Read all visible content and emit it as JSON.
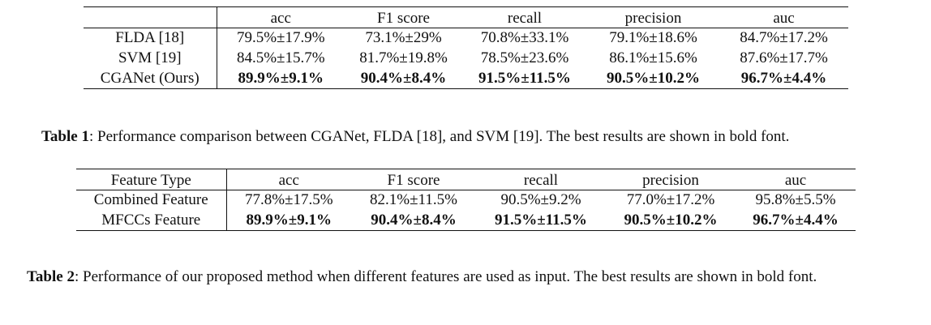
{
  "table1": {
    "headers": [
      "",
      "acc",
      "F1 score",
      "recall",
      "precision",
      "auc"
    ],
    "rows": [
      {
        "label": "FLDA [18]",
        "cells": [
          "79.5%±17.9%",
          "73.1%±29%",
          "70.8%±33.1%",
          "79.1%±18.6%",
          "84.7%±17.2%"
        ],
        "bold": false
      },
      {
        "label": "SVM [19]",
        "cells": [
          "84.5%±15.7%",
          "81.7%±19.8%",
          "78.5%±23.6%",
          "86.1%±15.6%",
          "87.6%±17.7%"
        ],
        "bold": false
      },
      {
        "label": "CGANet (Ours)",
        "cells": [
          "89.9%±9.1%",
          "90.4%±8.4%",
          "91.5%±11.5%",
          "90.5%±10.2%",
          "96.7%±4.4%"
        ],
        "bold": true
      }
    ]
  },
  "caption1": {
    "label": "Table 1",
    "text": ": Performance comparison between CGANet, FLDA  [18], and SVM [19]. The best results are shown in bold font."
  },
  "table2": {
    "headers": [
      "Feature Type",
      "acc",
      "F1 score",
      "recall",
      "precision",
      "auc"
    ],
    "rows": [
      {
        "label": "Combined Feature",
        "cells": [
          "77.8%±17.5%",
          "82.1%±11.5%",
          "90.5%±9.2%",
          "77.0%±17.2%",
          "95.8%±5.5%"
        ],
        "bold": false
      },
      {
        "label": "MFCCs Feature",
        "cells": [
          "89.9%±9.1%",
          "90.4%±8.4%",
          "91.5%±11.5%",
          "90.5%±10.2%",
          "96.7%±4.4%"
        ],
        "bold": true
      }
    ]
  },
  "caption2": {
    "label": "Table 2",
    "text": ":  Performance of our proposed method when different features are used as input.  The best results are shown in bold font."
  }
}
